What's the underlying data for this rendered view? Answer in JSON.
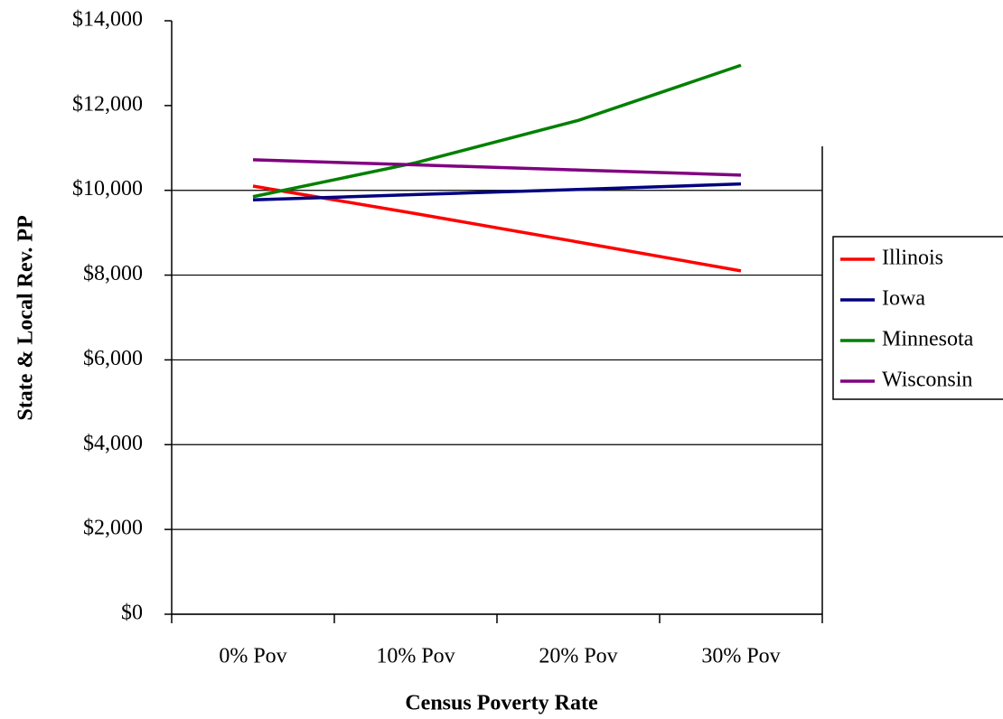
{
  "chart_data": {
    "type": "line",
    "x_label": "Census Poverty Rate",
    "y_label": "State & Local Rev. PP",
    "categories": [
      "0% Pov",
      "10% Pov",
      "20% Pov",
      "30% Pov"
    ],
    "series": [
      {
        "name": "Illinois",
        "color": "#ff0000",
        "values": [
          10100,
          9450,
          8780,
          8100
        ]
      },
      {
        "name": "Iowa",
        "color": "#000080",
        "values": [
          9775,
          9900,
          10020,
          10150
        ]
      },
      {
        "name": "Minnesota",
        "color": "#008000",
        "values": [
          9850,
          10650,
          11650,
          12950
        ]
      },
      {
        "name": "Wisconsin",
        "color": "#800080",
        "values": [
          10720,
          10600,
          10480,
          10360
        ]
      }
    ],
    "ylim": [
      0,
      14000
    ],
    "yticks": [
      {
        "value": 0,
        "label": "$0"
      },
      {
        "value": 2000,
        "label": "$2,000"
      },
      {
        "value": 4000,
        "label": "$4,000"
      },
      {
        "value": 6000,
        "label": "$6,000"
      },
      {
        "value": 8000,
        "label": "$8,000"
      },
      {
        "value": 10000,
        "label": "$10,000"
      },
      {
        "value": 12000,
        "label": "$12,000"
      },
      {
        "value": 14000,
        "label": "$14,000"
      }
    ],
    "grid": true,
    "legend": "right"
  }
}
